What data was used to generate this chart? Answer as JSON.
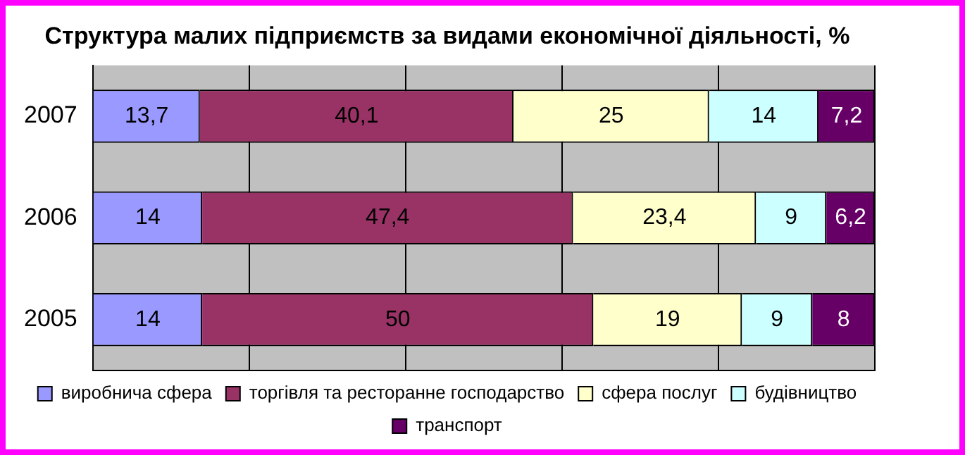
{
  "chart_data": {
    "type": "bar",
    "orientation": "horizontal",
    "stacked": true,
    "title": "Структура малих підприємств за видами економічної діяльності, %",
    "categories": [
      "2007",
      "2006",
      "2005"
    ],
    "series": [
      {
        "name": "виробнича сфера",
        "color": "#9999ff",
        "values": [
          13.7,
          14,
          14
        ],
        "value_labels": [
          "13,7",
          "14",
          "14"
        ]
      },
      {
        "name": "торгівля та ресторанне господарство",
        "color": "#993366",
        "values": [
          40.1,
          47.4,
          50
        ],
        "value_labels": [
          "40,1",
          "47,4",
          "50"
        ]
      },
      {
        "name": "сфера послуг",
        "color": "#ffffcc",
        "values": [
          25,
          23.4,
          19
        ],
        "value_labels": [
          "25",
          "23,4",
          "19"
        ]
      },
      {
        "name": "будівництво",
        "color": "#ccffff",
        "values": [
          14,
          9,
          9
        ],
        "value_labels": [
          "14",
          "9",
          "9"
        ]
      },
      {
        "name": "транспорт",
        "color": "#660066",
        "values": [
          7.2,
          6.2,
          8
        ],
        "value_labels": [
          "7,2",
          "6,2",
          "8"
        ]
      }
    ],
    "tick_labels": "y",
    "grid": "x",
    "legend": "bottom"
  }
}
